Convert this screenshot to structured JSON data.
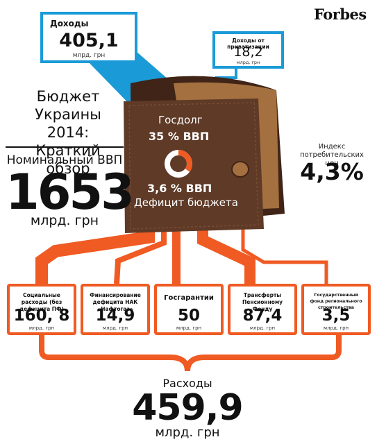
{
  "brand": "Forbes",
  "title_lines": [
    "Бюджет",
    "Украины 2014:",
    "Краткий обзор"
  ],
  "gdp": {
    "label": "Номинальный ВВП",
    "value": "1653",
    "unit": "млрд. грн"
  },
  "revenue": {
    "label": "Доходы",
    "value": "405,1",
    "unit": "млрд. грн"
  },
  "privatization": {
    "label": "Доходы от приватизации",
    "value": "18,2",
    "unit": "млрд. грн"
  },
  "wallet": {
    "debt_label": "Госдолг",
    "debt_value": "35 % ВВП",
    "deficit_value": "3,6 % ВВП",
    "deficit_label": "Дефицит бюджета",
    "debt_share_percent": 35
  },
  "cpi": {
    "label": "Индекс потребительских цен",
    "value": "4,3%"
  },
  "expense_items": [
    {
      "label": "Социальные расходы (без дефицита ПФ)",
      "value": "160, 8",
      "unit": "млрд. грн"
    },
    {
      "label": "Финансирование дефицита НАК «Нафтогаз»",
      "value": "14,9",
      "unit": "млрд. грн"
    },
    {
      "label": "Госгарантии",
      "value": "50",
      "unit": "млрд. грн"
    },
    {
      "label": "Трансферты Пенсионному Фонду",
      "value": "87,4",
      "unit": "млрд. грн"
    },
    {
      "label": "Государственный фонд регионального строительства",
      "value": "3,5",
      "unit": "млрд. грн"
    }
  ],
  "expenses": {
    "label": "Расходы",
    "value": "459,9",
    "unit": "млрд. грн"
  },
  "colors": {
    "blue": "#1a9bd7",
    "orange": "#f05a23",
    "wallet_brown": "#5e3a27",
    "wallet_tan": "#a4703f"
  }
}
